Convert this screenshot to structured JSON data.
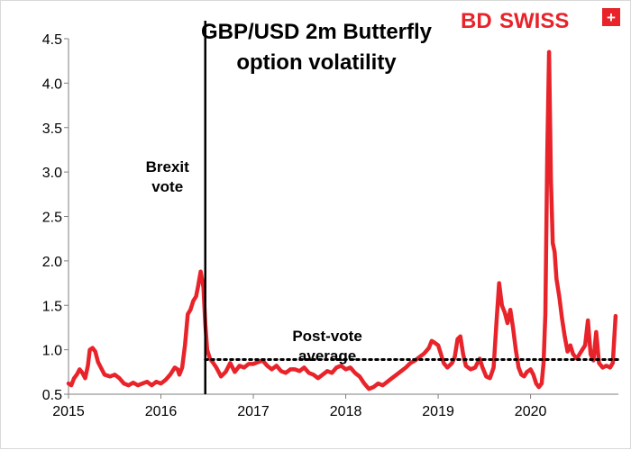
{
  "chart_data": {
    "type": "line",
    "title_lines": [
      "GBP/USD 2m Butterfly",
      "option volatility"
    ],
    "xlabel": "",
    "ylabel": "",
    "xlim": [
      2015.0,
      2020.95
    ],
    "ylim": [
      0.5,
      4.5
    ],
    "x_ticks": [
      2015,
      2016,
      2017,
      2018,
      2019,
      2020
    ],
    "x_tick_labels": [
      "2015",
      "2016",
      "2017",
      "2018",
      "2019",
      "2020"
    ],
    "y_ticks": [
      0.5,
      1.0,
      1.5,
      2.0,
      2.5,
      3.0,
      3.5,
      4.0,
      4.5
    ],
    "y_tick_labels": [
      "0.5",
      "1.0",
      "1.5",
      "2.0",
      "2.5",
      "3.0",
      "3.5",
      "4.0",
      "4.5"
    ],
    "grid": false,
    "legend": "none",
    "series": [
      {
        "color": "#e8232a",
        "points": [
          [
            2015.0,
            0.62
          ],
          [
            2015.03,
            0.6
          ],
          [
            2015.06,
            0.68
          ],
          [
            2015.09,
            0.72
          ],
          [
            2015.12,
            0.78
          ],
          [
            2015.15,
            0.74
          ],
          [
            2015.18,
            0.68
          ],
          [
            2015.21,
            0.82
          ],
          [
            2015.23,
            1.0
          ],
          [
            2015.26,
            1.02
          ],
          [
            2015.29,
            0.98
          ],
          [
            2015.32,
            0.86
          ],
          [
            2015.35,
            0.8
          ],
          [
            2015.39,
            0.72
          ],
          [
            2015.45,
            0.7
          ],
          [
            2015.5,
            0.72
          ],
          [
            2015.55,
            0.68
          ],
          [
            2015.6,
            0.62
          ],
          [
            2015.65,
            0.6
          ],
          [
            2015.7,
            0.63
          ],
          [
            2015.75,
            0.6
          ],
          [
            2015.8,
            0.62
          ],
          [
            2015.85,
            0.64
          ],
          [
            2015.9,
            0.6
          ],
          [
            2015.95,
            0.64
          ],
          [
            2016.0,
            0.62
          ],
          [
            2016.05,
            0.66
          ],
          [
            2016.1,
            0.72
          ],
          [
            2016.15,
            0.8
          ],
          [
            2016.18,
            0.78
          ],
          [
            2016.2,
            0.72
          ],
          [
            2016.23,
            0.8
          ],
          [
            2016.26,
            1.05
          ],
          [
            2016.29,
            1.4
          ],
          [
            2016.32,
            1.45
          ],
          [
            2016.35,
            1.55
          ],
          [
            2016.38,
            1.6
          ],
          [
            2016.4,
            1.7
          ],
          [
            2016.43,
            1.88
          ],
          [
            2016.46,
            1.7
          ],
          [
            2016.48,
            1.3
          ],
          [
            2016.5,
            1.0
          ],
          [
            2016.53,
            0.9
          ],
          [
            2016.56,
            0.86
          ],
          [
            2016.6,
            0.8
          ],
          [
            2016.65,
            0.7
          ],
          [
            2016.7,
            0.75
          ],
          [
            2016.75,
            0.85
          ],
          [
            2016.8,
            0.75
          ],
          [
            2016.85,
            0.82
          ],
          [
            2016.9,
            0.8
          ],
          [
            2016.95,
            0.84
          ],
          [
            2017.0,
            0.84
          ],
          [
            2017.05,
            0.86
          ],
          [
            2017.1,
            0.88
          ],
          [
            2017.15,
            0.82
          ],
          [
            2017.2,
            0.78
          ],
          [
            2017.25,
            0.82
          ],
          [
            2017.3,
            0.76
          ],
          [
            2017.35,
            0.74
          ],
          [
            2017.4,
            0.78
          ],
          [
            2017.45,
            0.78
          ],
          [
            2017.5,
            0.76
          ],
          [
            2017.55,
            0.8
          ],
          [
            2017.6,
            0.74
          ],
          [
            2017.65,
            0.72
          ],
          [
            2017.7,
            0.68
          ],
          [
            2017.75,
            0.72
          ],
          [
            2017.8,
            0.76
          ],
          [
            2017.85,
            0.74
          ],
          [
            2017.9,
            0.8
          ],
          [
            2017.95,
            0.82
          ],
          [
            2018.0,
            0.78
          ],
          [
            2018.05,
            0.8
          ],
          [
            2018.1,
            0.74
          ],
          [
            2018.15,
            0.7
          ],
          [
            2018.2,
            0.62
          ],
          [
            2018.25,
            0.56
          ],
          [
            2018.3,
            0.58
          ],
          [
            2018.35,
            0.62
          ],
          [
            2018.4,
            0.6
          ],
          [
            2018.45,
            0.64
          ],
          [
            2018.5,
            0.68
          ],
          [
            2018.55,
            0.72
          ],
          [
            2018.6,
            0.76
          ],
          [
            2018.65,
            0.8
          ],
          [
            2018.7,
            0.85
          ],
          [
            2018.75,
            0.88
          ],
          [
            2018.8,
            0.92
          ],
          [
            2018.85,
            0.96
          ],
          [
            2018.9,
            1.02
          ],
          [
            2018.93,
            1.1
          ],
          [
            2018.96,
            1.08
          ],
          [
            2019.0,
            1.05
          ],
          [
            2019.03,
            0.95
          ],
          [
            2019.06,
            0.85
          ],
          [
            2019.1,
            0.8
          ],
          [
            2019.15,
            0.85
          ],
          [
            2019.18,
            0.92
          ],
          [
            2019.21,
            1.12
          ],
          [
            2019.24,
            1.15
          ],
          [
            2019.27,
            0.95
          ],
          [
            2019.3,
            0.82
          ],
          [
            2019.35,
            0.78
          ],
          [
            2019.4,
            0.8
          ],
          [
            2019.45,
            0.9
          ],
          [
            2019.48,
            0.8
          ],
          [
            2019.52,
            0.7
          ],
          [
            2019.56,
            0.68
          ],
          [
            2019.6,
            0.8
          ],
          [
            2019.63,
            1.3
          ],
          [
            2019.66,
            1.75
          ],
          [
            2019.69,
            1.5
          ],
          [
            2019.72,
            1.42
          ],
          [
            2019.75,
            1.3
          ],
          [
            2019.78,
            1.45
          ],
          [
            2019.81,
            1.25
          ],
          [
            2019.84,
            1.0
          ],
          [
            2019.87,
            0.8
          ],
          [
            2019.9,
            0.72
          ],
          [
            2019.93,
            0.7
          ],
          [
            2019.96,
            0.75
          ],
          [
            2020.0,
            0.78
          ],
          [
            2020.03,
            0.72
          ],
          [
            2020.06,
            0.62
          ],
          [
            2020.09,
            0.58
          ],
          [
            2020.12,
            0.62
          ],
          [
            2020.14,
            0.85
          ],
          [
            2020.16,
            1.4
          ],
          [
            2020.18,
            3.2
          ],
          [
            2020.2,
            4.35
          ],
          [
            2020.22,
            2.9
          ],
          [
            2020.24,
            2.2
          ],
          [
            2020.26,
            2.1
          ],
          [
            2020.28,
            1.8
          ],
          [
            2020.31,
            1.6
          ],
          [
            2020.34,
            1.35
          ],
          [
            2020.37,
            1.15
          ],
          [
            2020.4,
            0.98
          ],
          [
            2020.43,
            1.05
          ],
          [
            2020.46,
            0.95
          ],
          [
            2020.5,
            0.9
          ],
          [
            2020.53,
            0.95
          ],
          [
            2020.56,
            1.0
          ],
          [
            2020.59,
            1.05
          ],
          [
            2020.62,
            1.33
          ],
          [
            2020.65,
            0.95
          ],
          [
            2020.68,
            0.88
          ],
          [
            2020.71,
            1.2
          ],
          [
            2020.74,
            0.85
          ],
          [
            2020.78,
            0.8
          ],
          [
            2020.82,
            0.82
          ],
          [
            2020.86,
            0.8
          ],
          [
            2020.89,
            0.85
          ],
          [
            2020.92,
            1.38
          ]
        ]
      }
    ],
    "reference_line": {
      "x": 2016.48,
      "color": "#000000"
    },
    "average_line": {
      "y": 0.89,
      "x_start": 2016.48,
      "x_end": 2020.95,
      "color": "#000000"
    },
    "annotations": [
      {
        "lines": [
          "Brexit",
          "vote"
        ],
        "x": 2016.07,
        "y": 3.0
      },
      {
        "lines": [
          "Post-vote",
          "average"
        ],
        "x": 2017.8,
        "y": 1.1
      }
    ]
  },
  "branding": {
    "logo_text_bd": "BD",
    "logo_text_swiss": "SWISS",
    "logo_color": "#e8232a"
  }
}
